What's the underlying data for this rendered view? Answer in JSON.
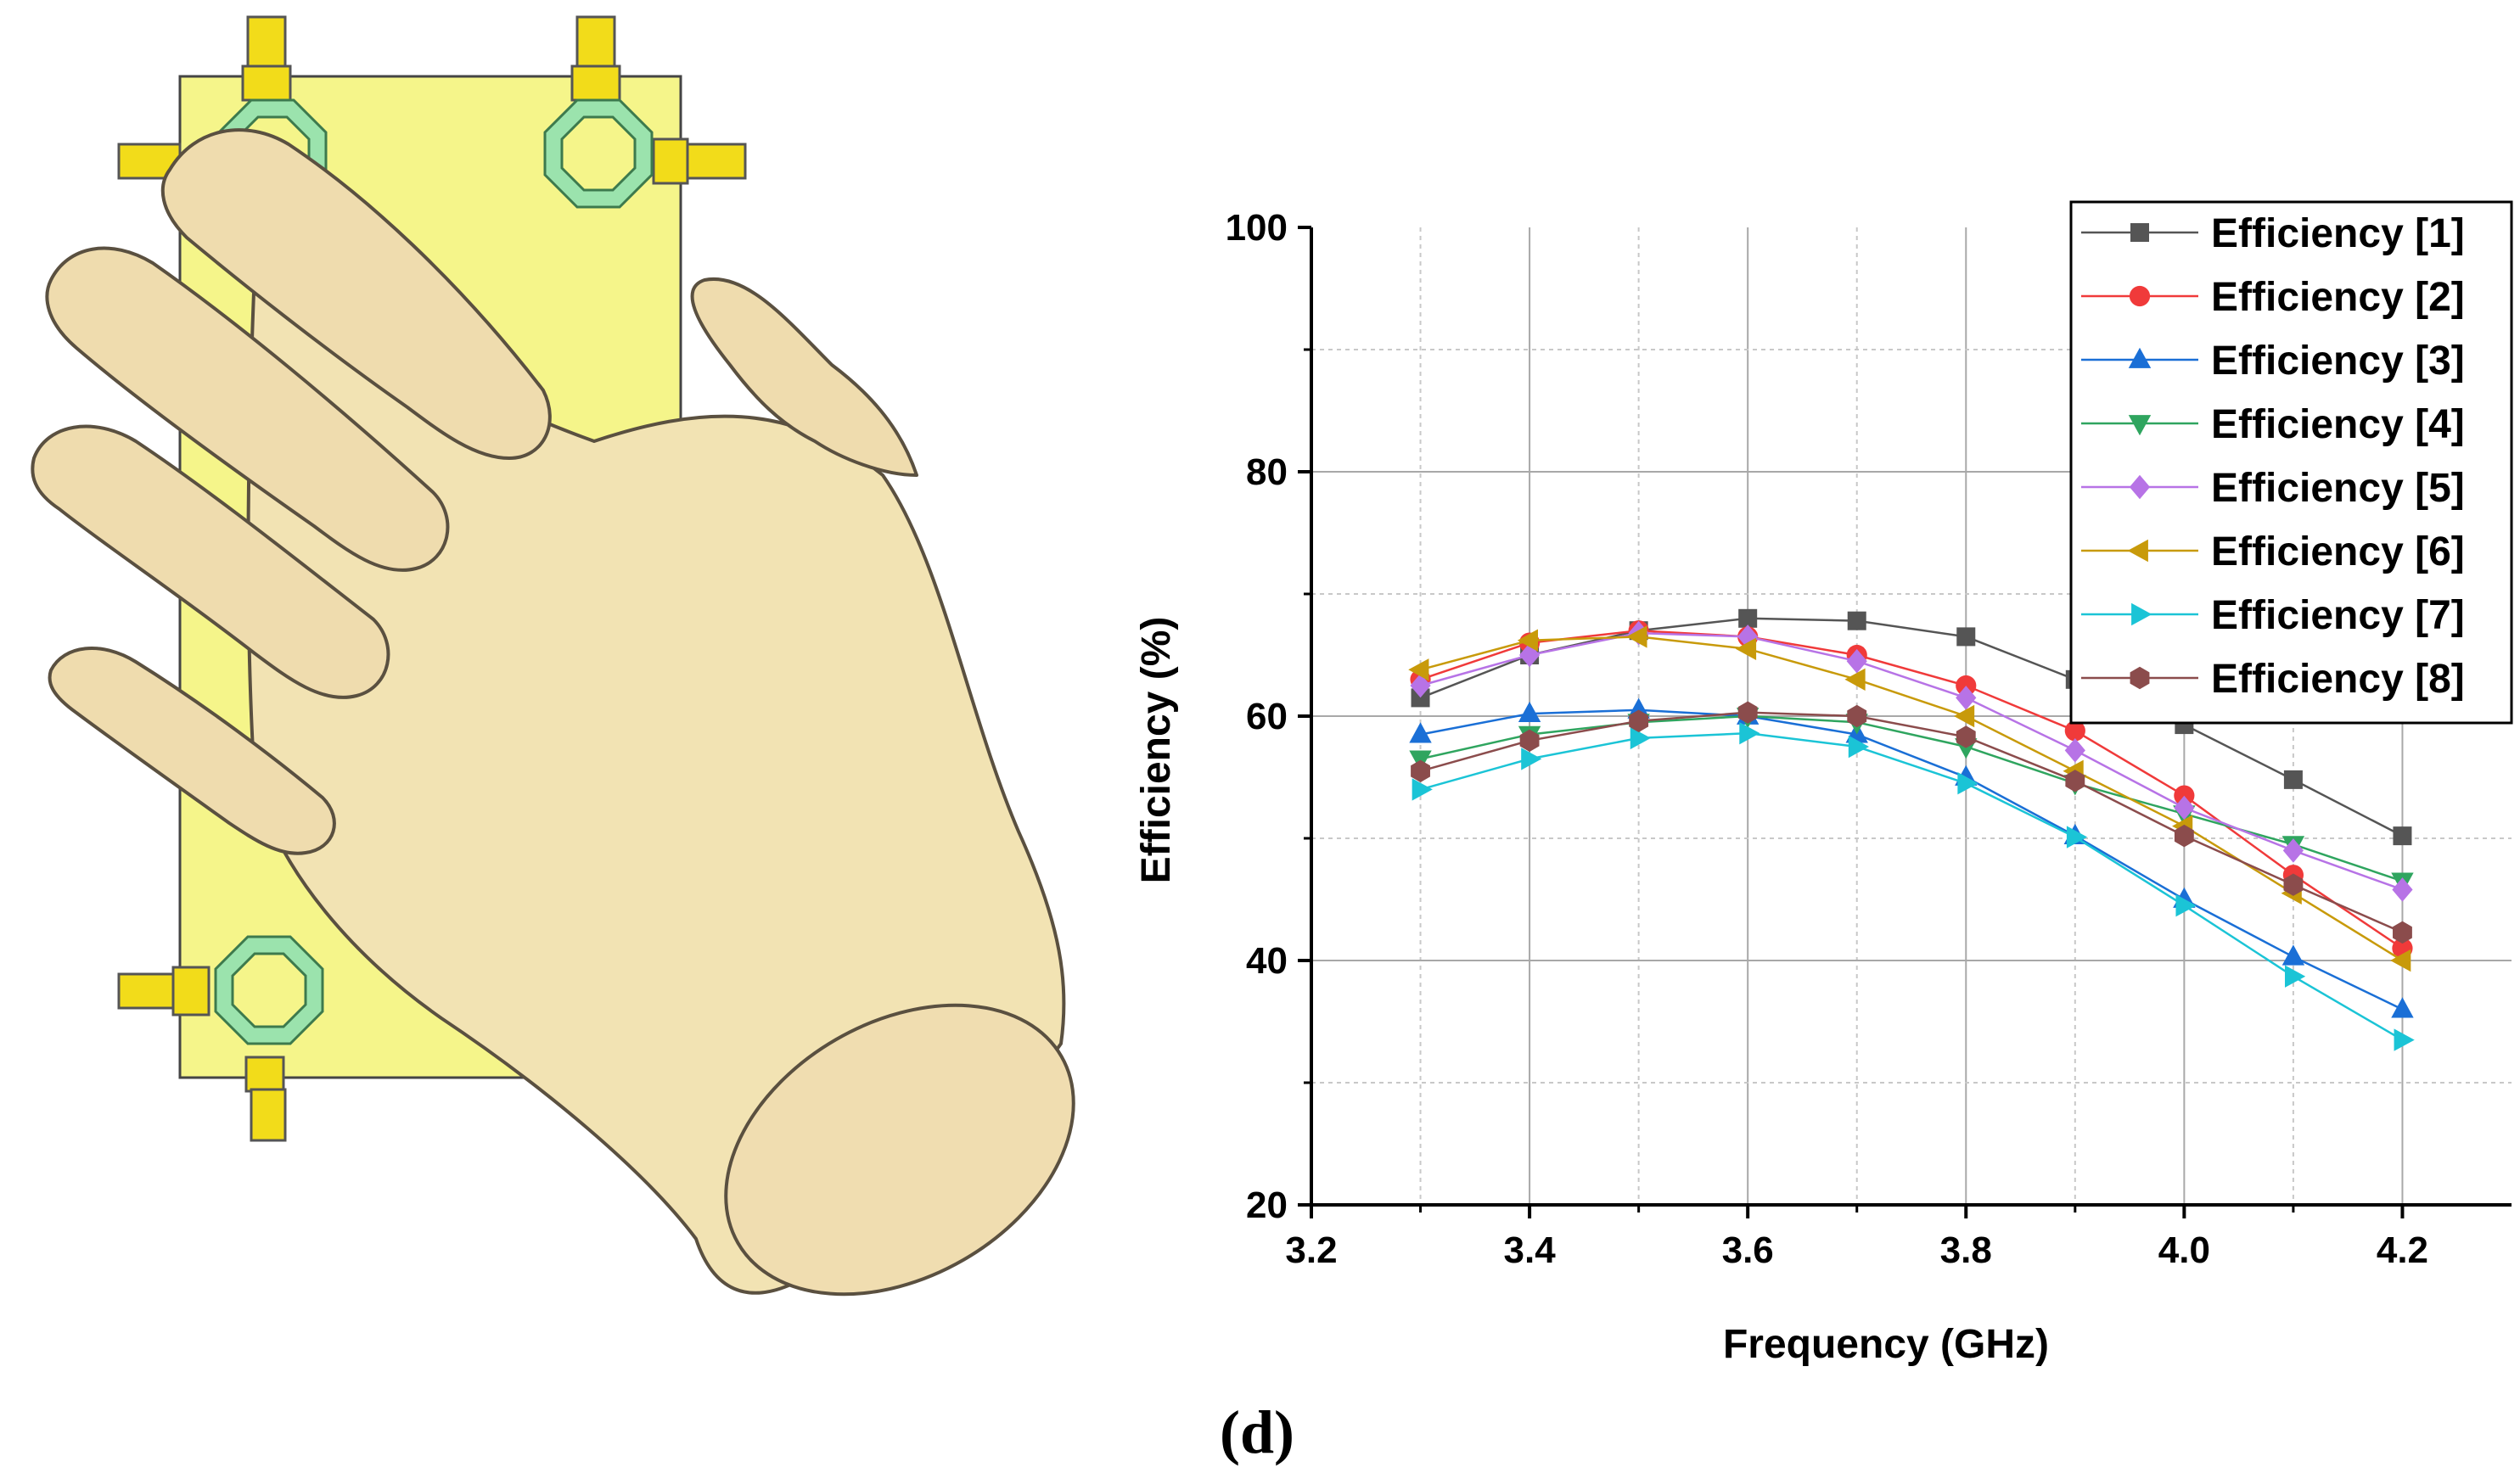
{
  "figure": {
    "panel_label": "(d)"
  },
  "illustration": {
    "board_color": "#f5f58a",
    "port_color": "#f2dc1a",
    "ring_color": "#9be3ad",
    "hand_color": "#f2e3b3"
  },
  "chart_data": {
    "type": "line",
    "xlabel": "Frequency (GHz)",
    "ylabel": "Efficiency (%)",
    "xlim": [
      3.2,
      4.3
    ],
    "ylim": [
      20,
      100
    ],
    "xticks": [
      "3.2",
      "3.4",
      "3.6",
      "3.8",
      "4.0",
      "4.2"
    ],
    "yticks": [
      "20",
      "40",
      "60",
      "80",
      "100"
    ],
    "grid": true,
    "legend_position": "top-right",
    "x": [
      3.3,
      3.4,
      3.5,
      3.6,
      3.7,
      3.8,
      3.9,
      4.0,
      4.1,
      4.2
    ],
    "series": [
      {
        "name": "Efficiency [1]",
        "color": "#555555",
        "marker": "square",
        "values": [
          61.5,
          65,
          67,
          68,
          67.8,
          66.5,
          63,
          59.3,
          54.8,
          50.2
        ]
      },
      {
        "name": "Efficiency [2]",
        "color": "#f03a3a",
        "marker": "circle",
        "values": [
          63,
          66,
          67,
          66.5,
          65,
          62.5,
          58.8,
          53.5,
          47,
          41
        ]
      },
      {
        "name": "Efficiency [3]",
        "color": "#1a6fd6",
        "marker": "triangle-up",
        "values": [
          58.5,
          60.2,
          60.5,
          60,
          58.5,
          55,
          50.2,
          45,
          40.3,
          36
        ]
      },
      {
        "name": "Efficiency [4]",
        "color": "#2fa55f",
        "marker": "triangle-down",
        "values": [
          56.5,
          58.5,
          59.5,
          60,
          59.5,
          57.5,
          54.5,
          52,
          49.5,
          46.5
        ]
      },
      {
        "name": "Efficiency [5]",
        "color": "#b773e6",
        "marker": "diamond",
        "values": [
          62.5,
          65,
          66.8,
          66.5,
          64.5,
          61.5,
          57.2,
          52.5,
          49,
          45.8
        ]
      },
      {
        "name": "Efficiency [6]",
        "color": "#c89a0a",
        "marker": "triangle-left",
        "values": [
          63.8,
          66.2,
          66.5,
          65.5,
          63,
          60,
          55.5,
          51,
          45.5,
          40
        ]
      },
      {
        "name": "Efficiency [7]",
        "color": "#1bc4d6",
        "marker": "triangle-right",
        "values": [
          54,
          56.5,
          58.2,
          58.6,
          57.5,
          54.5,
          50.1,
          44.5,
          38.7,
          33.5
        ]
      },
      {
        "name": "Efficiency [8]",
        "color": "#8b4c4c",
        "marker": "hexagon",
        "values": [
          55.5,
          58,
          59.6,
          60.3,
          60,
          58.3,
          54.7,
          50.2,
          46.2,
          42.3
        ]
      }
    ]
  }
}
